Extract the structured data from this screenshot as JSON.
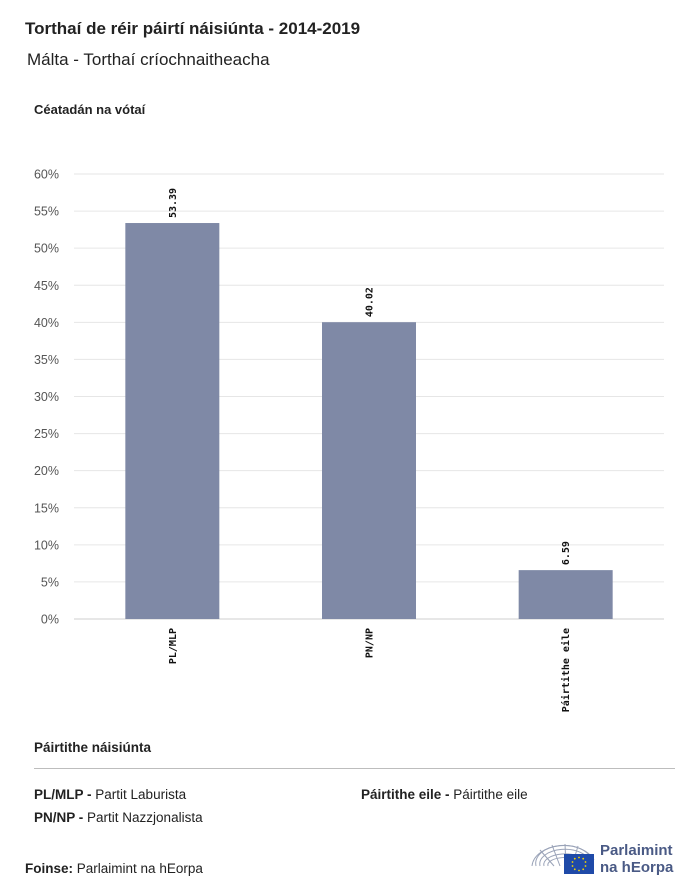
{
  "header": {
    "title": "Torthaí de réir páirtí náisiúnta - 2014-2019",
    "subtitle": "Málta - Torthaí críochnaitheacha",
    "y_axis_label": "Céatadán na vótaí"
  },
  "chart_data": {
    "type": "bar",
    "categories": [
      "PL/MLP",
      "PN/NP",
      "Páirtithe eile"
    ],
    "values": [
      53.39,
      40.02,
      6.59
    ],
    "data_labels": [
      "53.39",
      "40.02",
      "6.59"
    ],
    "ylabel": "Céatadán na vótaí",
    "ylim": [
      0,
      60
    ],
    "yticks": [
      "0%",
      "5%",
      "10%",
      "15%",
      "20%",
      "25%",
      "30%",
      "35%",
      "40%",
      "45%",
      "50%",
      "55%",
      "60%"
    ],
    "grid": true,
    "bar_color": "#7f89a6"
  },
  "legend": {
    "title": "Páirtithe náisiúnta",
    "items": [
      {
        "code": "PL/MLP -",
        "name": "Partit Laburista"
      },
      {
        "code": "PN/NP -",
        "name": "Partit Nazzjonalista"
      },
      {
        "code": "Páirtithe eile -",
        "name": "Páirtithe eile"
      }
    ]
  },
  "footer": {
    "source_label": "Foinse:",
    "source_text": "Parlaimint na hEorpa",
    "logo_line1": "Parlaimint",
    "logo_line2": "na hEorpa"
  },
  "colors": {
    "bar": "#7f89a6",
    "grid": "#e6e6e6",
    "logo": "#4a5a85",
    "eu_blue": "#1f4aa8",
    "eu_star": "#f5d400"
  }
}
